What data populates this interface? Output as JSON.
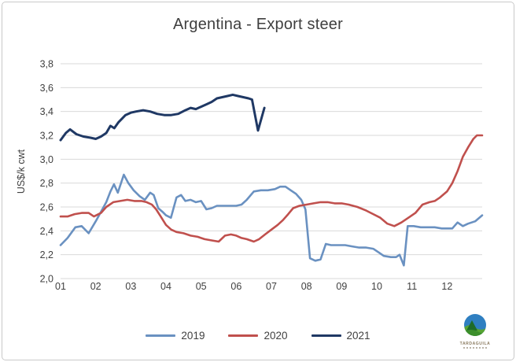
{
  "title": "Argentina - Export steer",
  "y_axis": {
    "label": "US$/k cwt",
    "tick_labels": [
      "3,8",
      "3,6",
      "3,4",
      "3,2",
      "3,0",
      "2,8",
      "2,6",
      "2,4",
      "2,2",
      "2,0"
    ]
  },
  "x_axis": {
    "tick_labels": [
      "01",
      "02",
      "03",
      "04",
      "05",
      "06",
      "07",
      "08",
      "09",
      "10",
      "11",
      "12"
    ]
  },
  "legend": {
    "items": [
      {
        "label": "2019",
        "color": "#6A91C1"
      },
      {
        "label": "2020",
        "color": "#C0504D"
      },
      {
        "label": "2021",
        "color": "#1F3864"
      }
    ]
  },
  "logo": {
    "text": "TARDAGUILA"
  },
  "colors": {
    "gridline": "#D9D9D9",
    "axis_text": "#404040",
    "title_text": "#3F3F3F"
  },
  "chart_data": {
    "type": "line",
    "title": "Argentina - Export steer",
    "xlabel": "",
    "ylabel": "US$/k cwt",
    "ylim": [
      2.0,
      3.8
    ],
    "ytick_step": 0.2,
    "decimal_separator": ",",
    "grid": "horizontal",
    "legend_position": "bottom",
    "x_axis_note": "x values are fractional months, 1.0 = start of Jan, 13.0 = end of Dec (weekly data)",
    "series": [
      {
        "name": "2019",
        "color": "#6A91C1",
        "width": 2.6,
        "points": [
          [
            1.0,
            2.28
          ],
          [
            1.2,
            2.34
          ],
          [
            1.42,
            2.43
          ],
          [
            1.6,
            2.44
          ],
          [
            1.8,
            2.38
          ],
          [
            2.0,
            2.48
          ],
          [
            2.15,
            2.56
          ],
          [
            2.3,
            2.64
          ],
          [
            2.42,
            2.73
          ],
          [
            2.52,
            2.79
          ],
          [
            2.63,
            2.72
          ],
          [
            2.8,
            2.87
          ],
          [
            2.93,
            2.8
          ],
          [
            3.08,
            2.74
          ],
          [
            3.25,
            2.69
          ],
          [
            3.4,
            2.66
          ],
          [
            3.55,
            2.72
          ],
          [
            3.65,
            2.7
          ],
          [
            3.78,
            2.59
          ],
          [
            3.9,
            2.56
          ],
          [
            4.0,
            2.53
          ],
          [
            4.14,
            2.51
          ],
          [
            4.3,
            2.68
          ],
          [
            4.43,
            2.7
          ],
          [
            4.55,
            2.65
          ],
          [
            4.7,
            2.66
          ],
          [
            4.85,
            2.64
          ],
          [
            5.0,
            2.65
          ],
          [
            5.15,
            2.58
          ],
          [
            5.3,
            2.59
          ],
          [
            5.45,
            2.61
          ],
          [
            5.6,
            2.61
          ],
          [
            5.8,
            2.61
          ],
          [
            6.0,
            2.61
          ],
          [
            6.15,
            2.62
          ],
          [
            6.3,
            2.66
          ],
          [
            6.5,
            2.73
          ],
          [
            6.7,
            2.74
          ],
          [
            6.9,
            2.74
          ],
          [
            7.1,
            2.75
          ],
          [
            7.25,
            2.77
          ],
          [
            7.4,
            2.77
          ],
          [
            7.55,
            2.74
          ],
          [
            7.7,
            2.71
          ],
          [
            7.85,
            2.66
          ],
          [
            7.97,
            2.58
          ],
          [
            8.1,
            2.17
          ],
          [
            8.25,
            2.15
          ],
          [
            8.4,
            2.16
          ],
          [
            8.55,
            2.29
          ],
          [
            8.7,
            2.28
          ],
          [
            8.9,
            2.28
          ],
          [
            9.1,
            2.28
          ],
          [
            9.3,
            2.27
          ],
          [
            9.5,
            2.26
          ],
          [
            9.7,
            2.26
          ],
          [
            9.9,
            2.25
          ],
          [
            10.05,
            2.22
          ],
          [
            10.2,
            2.19
          ],
          [
            10.4,
            2.18
          ],
          [
            10.55,
            2.18
          ],
          [
            10.65,
            2.2
          ],
          [
            10.77,
            2.11
          ],
          [
            10.88,
            2.44
          ],
          [
            11.05,
            2.44
          ],
          [
            11.25,
            2.43
          ],
          [
            11.45,
            2.43
          ],
          [
            11.65,
            2.43
          ],
          [
            11.85,
            2.42
          ],
          [
            12.0,
            2.42
          ],
          [
            12.15,
            2.42
          ],
          [
            12.3,
            2.47
          ],
          [
            12.45,
            2.44
          ],
          [
            12.6,
            2.46
          ],
          [
            12.8,
            2.48
          ],
          [
            13.0,
            2.53
          ]
        ]
      },
      {
        "name": "2020",
        "color": "#C0504D",
        "width": 2.6,
        "points": [
          [
            1.0,
            2.52
          ],
          [
            1.2,
            2.52
          ],
          [
            1.4,
            2.54
          ],
          [
            1.6,
            2.55
          ],
          [
            1.8,
            2.55
          ],
          [
            1.95,
            2.52
          ],
          [
            2.15,
            2.55
          ],
          [
            2.3,
            2.6
          ],
          [
            2.5,
            2.64
          ],
          [
            2.7,
            2.65
          ],
          [
            2.9,
            2.66
          ],
          [
            3.1,
            2.65
          ],
          [
            3.3,
            2.65
          ],
          [
            3.45,
            2.64
          ],
          [
            3.6,
            2.62
          ],
          [
            3.72,
            2.58
          ],
          [
            3.85,
            2.52
          ],
          [
            4.0,
            2.45
          ],
          [
            4.15,
            2.41
          ],
          [
            4.3,
            2.39
          ],
          [
            4.5,
            2.38
          ],
          [
            4.7,
            2.36
          ],
          [
            4.9,
            2.35
          ],
          [
            5.1,
            2.33
          ],
          [
            5.3,
            2.32
          ],
          [
            5.5,
            2.31
          ],
          [
            5.68,
            2.36
          ],
          [
            5.85,
            2.37
          ],
          [
            6.0,
            2.36
          ],
          [
            6.15,
            2.34
          ],
          [
            6.3,
            2.33
          ],
          [
            6.5,
            2.31
          ],
          [
            6.65,
            2.33
          ],
          [
            6.82,
            2.37
          ],
          [
            7.0,
            2.41
          ],
          [
            7.18,
            2.45
          ],
          [
            7.33,
            2.49
          ],
          [
            7.48,
            2.54
          ],
          [
            7.62,
            2.59
          ],
          [
            7.8,
            2.61
          ],
          [
            8.0,
            2.62
          ],
          [
            8.2,
            2.63
          ],
          [
            8.4,
            2.64
          ],
          [
            8.6,
            2.64
          ],
          [
            8.8,
            2.63
          ],
          [
            9.0,
            2.63
          ],
          [
            9.2,
            2.62
          ],
          [
            9.45,
            2.6
          ],
          [
            9.7,
            2.57
          ],
          [
            9.9,
            2.54
          ],
          [
            10.1,
            2.51
          ],
          [
            10.3,
            2.46
          ],
          [
            10.5,
            2.44
          ],
          [
            10.7,
            2.47
          ],
          [
            10.9,
            2.51
          ],
          [
            11.1,
            2.55
          ],
          [
            11.3,
            2.62
          ],
          [
            11.5,
            2.64
          ],
          [
            11.65,
            2.65
          ],
          [
            11.8,
            2.68
          ],
          [
            12.0,
            2.73
          ],
          [
            12.15,
            2.8
          ],
          [
            12.3,
            2.9
          ],
          [
            12.45,
            3.02
          ],
          [
            12.6,
            3.1
          ],
          [
            12.75,
            3.17
          ],
          [
            12.85,
            3.2
          ],
          [
            13.0,
            3.2
          ]
        ]
      },
      {
        "name": "2021",
        "color": "#1F3864",
        "width": 3.0,
        "points": [
          [
            1.0,
            3.16
          ],
          [
            1.15,
            3.22
          ],
          [
            1.27,
            3.25
          ],
          [
            1.45,
            3.21
          ],
          [
            1.65,
            3.19
          ],
          [
            1.85,
            3.18
          ],
          [
            2.0,
            3.17
          ],
          [
            2.15,
            3.19
          ],
          [
            2.3,
            3.22
          ],
          [
            2.42,
            3.28
          ],
          [
            2.53,
            3.26
          ],
          [
            2.65,
            3.31
          ],
          [
            2.85,
            3.37
          ],
          [
            3.0,
            3.39
          ],
          [
            3.15,
            3.4
          ],
          [
            3.35,
            3.41
          ],
          [
            3.55,
            3.4
          ],
          [
            3.75,
            3.38
          ],
          [
            3.95,
            3.37
          ],
          [
            4.15,
            3.37
          ],
          [
            4.35,
            3.38
          ],
          [
            4.55,
            3.41
          ],
          [
            4.7,
            3.43
          ],
          [
            4.85,
            3.42
          ],
          [
            5.0,
            3.44
          ],
          [
            5.15,
            3.46
          ],
          [
            5.3,
            3.48
          ],
          [
            5.45,
            3.51
          ],
          [
            5.6,
            3.52
          ],
          [
            5.75,
            3.53
          ],
          [
            5.9,
            3.54
          ],
          [
            6.05,
            3.53
          ],
          [
            6.2,
            3.52
          ],
          [
            6.35,
            3.51
          ],
          [
            6.45,
            3.5
          ],
          [
            6.62,
            3.24
          ],
          [
            6.8,
            3.43
          ]
        ]
      }
    ]
  }
}
